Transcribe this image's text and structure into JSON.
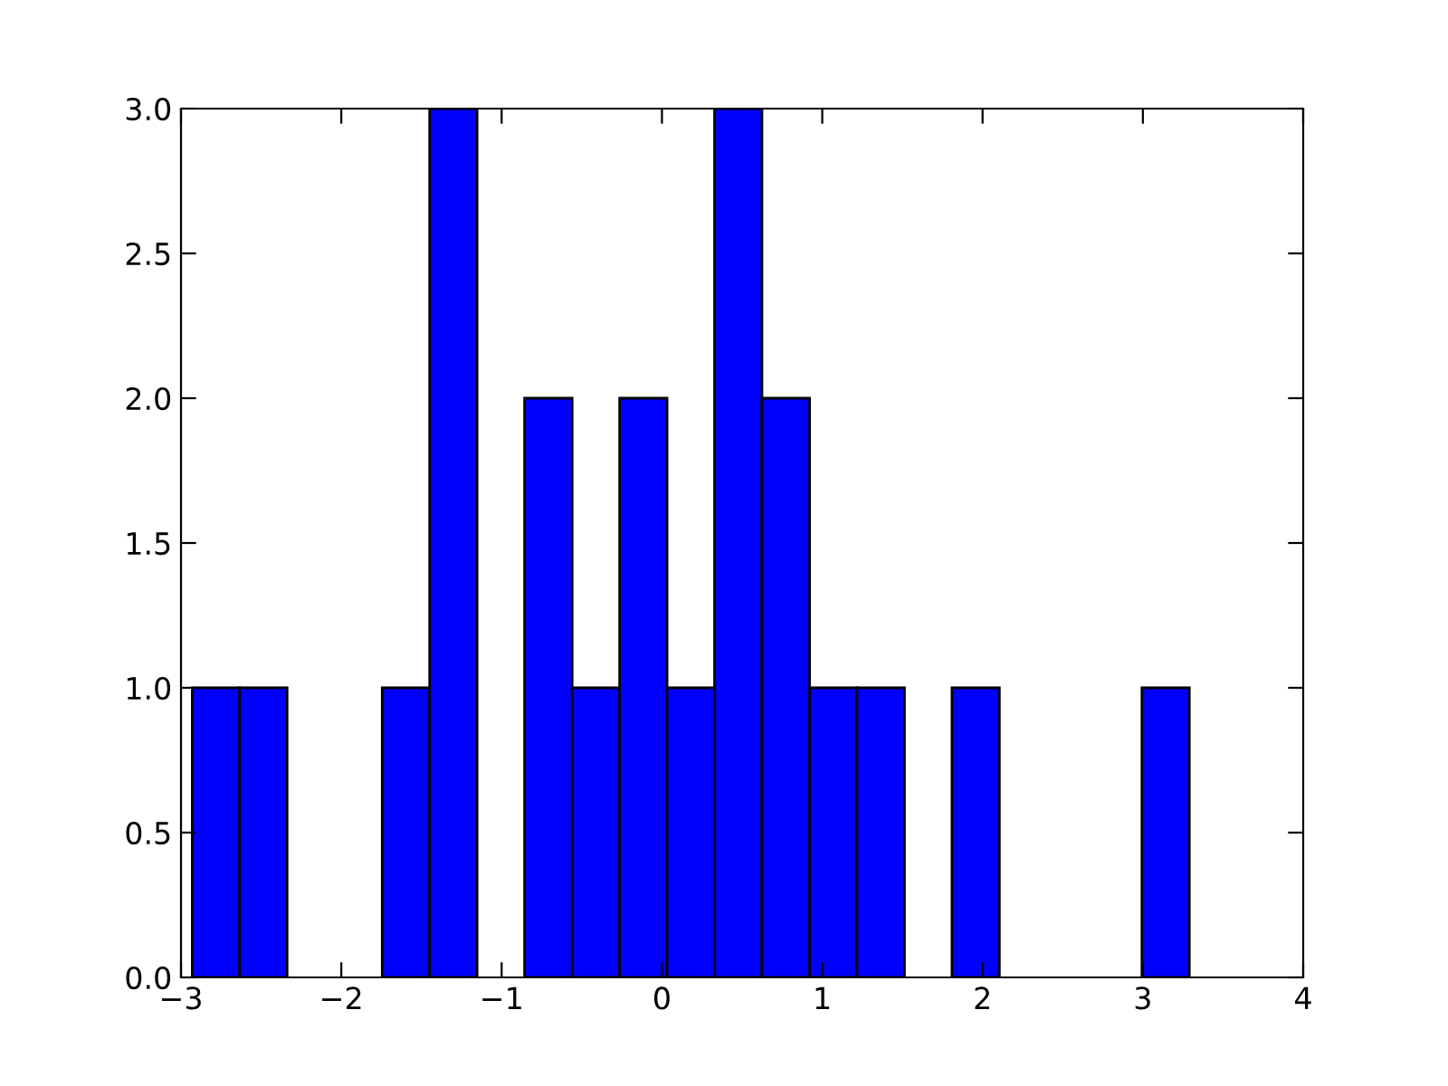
{
  "chart_data": {
    "type": "histogram",
    "bins": [
      -2.93,
      -2.634,
      -2.338,
      -2.041,
      -1.745,
      -1.449,
      -1.153,
      -0.857,
      -0.56,
      -0.264,
      0.032,
      0.328,
      0.624,
      0.921,
      1.217,
      1.513,
      1.809,
      2.105,
      2.402,
      2.698,
      2.994,
      3.29
    ],
    "values": [
      1,
      1,
      0,
      0,
      1,
      3,
      0,
      2,
      1,
      2,
      1,
      3,
      2,
      1,
      1,
      0,
      1,
      0,
      0,
      0,
      1
    ],
    "color": "#0000ff",
    "xlim": [
      -3,
      4
    ],
    "xticks": [
      {
        "value": -3,
        "label": "−3"
      },
      {
        "value": -2,
        "label": "−2"
      },
      {
        "value": -1,
        "label": "−1"
      },
      0,
      1,
      2,
      3,
      4
    ],
    "ylim": [
      0,
      3
    ],
    "yticks": [
      {
        "value": 0,
        "label": "0.0"
      },
      {
        "value": 0.5,
        "label": "0.5"
      },
      {
        "value": 1,
        "label": "1.0"
      },
      {
        "value": 1.5,
        "label": "1.5"
      },
      {
        "value": 2,
        "label": "2.0"
      },
      {
        "value": 2.5,
        "label": "2.5"
      },
      {
        "value": 3,
        "label": "3.0"
      }
    ],
    "grid": false
  }
}
